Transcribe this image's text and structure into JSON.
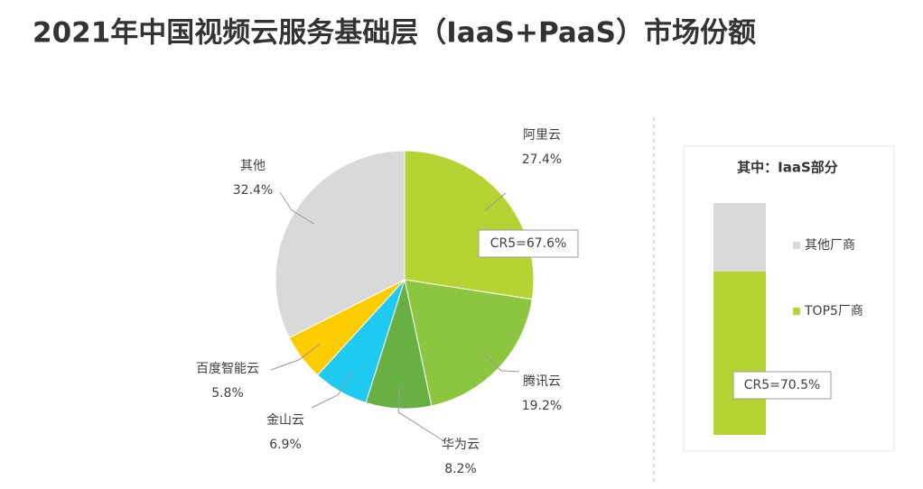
{
  "chart_data": [
    {
      "type": "pie",
      "title": "2021年中国视频云服务基础层（IaaS+PaaS）市场份额",
      "categories": [
        "阿里云",
        "腾讯云",
        "华为云",
        "金山云",
        "百度智能云",
        "其他"
      ],
      "values": [
        27.4,
        19.2,
        8.2,
        6.9,
        5.8,
        32.4
      ],
      "value_labels": [
        "27.4%",
        "19.2%",
        "8.2%",
        "6.9%",
        "5.8%",
        "32.4%"
      ],
      "colors": [
        "#b6d334",
        "#8cc640",
        "#69b044",
        "#1fcaf1",
        "#ffcc00",
        "#d9d9d9"
      ],
      "annotation": "CR5=67.6%"
    },
    {
      "type": "stacked-bar",
      "title": "其中：IaaS部分",
      "series": [
        {
          "name": "TOP5厂商",
          "color": "#b6d334",
          "values": [
            70.5
          ]
        },
        {
          "name": "其他厂商",
          "color": "#d9d9d9",
          "values": [
            29.5
          ]
        }
      ],
      "annotation": "CR5=70.5%"
    }
  ]
}
